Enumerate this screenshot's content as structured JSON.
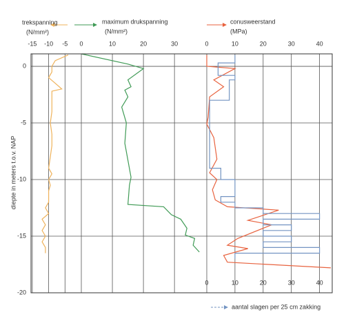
{
  "chart_data": [
    {
      "type": "line",
      "title": "trekspanning",
      "unit": "(N/mm²)",
      "ylabel": "diepte in meters t.o.v. NAP",
      "xlim": [
        -15.4,
        0
      ],
      "xticks": [
        -15,
        -10,
        -5,
        0
      ],
      "ylim": [
        -20,
        1.1
      ],
      "yticks": [
        0,
        -5,
        -10,
        -15,
        -20
      ],
      "grid": true,
      "series": [
        {
          "color": "#efb25a",
          "values": [
            -4,
            -8,
            -9,
            -9,
            -10,
            -8,
            -6,
            -9,
            -9,
            -9,
            -9,
            -9.5,
            -9,
            -9,
            -9.5,
            -10,
            -9,
            -10,
            -9.5,
            -10,
            -10,
            -11,
            -10,
            -12,
            -11,
            -12,
            -11,
            -12,
            -11,
            -11
          ],
          "depth": [
            1,
            0.5,
            0,
            -0.5,
            -1,
            -1.5,
            -2,
            -2.2,
            -2.5,
            -3,
            -4,
            -5,
            -6,
            -7,
            -8,
            -9,
            -9.5,
            -10,
            -10.5,
            -11,
            -12,
            -12.5,
            -13,
            -13.5,
            -14,
            -14.5,
            -15,
            -15.5,
            -16,
            -16.5
          ]
        }
      ]
    },
    {
      "type": "line",
      "title": "maximum drukspanning",
      "unit": "(N/mm²)",
      "xlim": [
        0,
        40.4
      ],
      "xticks": [
        10,
        20,
        30
      ],
      "grid": true,
      "series": [
        {
          "color": "#3f9a55",
          "values": [
            0,
            15,
            20,
            15,
            16,
            14,
            15,
            13,
            14.5,
            14,
            16,
            15.5,
            15,
            26.5,
            29,
            32,
            34,
            33.5,
            36.5,
            36,
            38
          ],
          "depth": [
            1.1,
            0.2,
            -0.2,
            -1.2,
            -1.8,
            -2.1,
            -2.7,
            -3.6,
            -5,
            -6.8,
            -9.8,
            -10.5,
            -12.2,
            -12.4,
            -13.1,
            -13.5,
            -14.3,
            -14.9,
            -15.2,
            -15.8,
            -16.4
          ]
        }
      ]
    },
    {
      "type": "line",
      "title": "conusweerstand",
      "unit": "(MPa)",
      "xlim": [
        0,
        44.5
      ],
      "xticks": [
        0,
        10,
        20,
        30,
        40
      ],
      "grid": true,
      "x2label": "aantal slagen per 25 cm zakking",
      "x2ticks": [
        0,
        10,
        20,
        30,
        40
      ],
      "series": [
        {
          "color": "#e8623e",
          "values": [
            0,
            0,
            10,
            2.5,
            6,
            1,
            0.5,
            0,
            2.5,
            3.6,
            1,
            3.6,
            2,
            3,
            7.3,
            25.5,
            14.6,
            23,
            11,
            7.3,
            14.6,
            6,
            7.3,
            44
          ],
          "depth": [
            1,
            0,
            -0.2,
            -1.2,
            -1.8,
            -2.7,
            -4.5,
            -5.1,
            -6.3,
            -8.2,
            -9.4,
            -10,
            -10.9,
            -11.8,
            -12.4,
            -12.7,
            -13.6,
            -14,
            -15.2,
            -15.8,
            -16.1,
            -16.7,
            -17.3,
            -17.8
          ]
        },
        {
          "color": "#7394c2",
          "axis": "x2",
          "values": [
            10,
            10,
            4,
            4,
            10,
            10,
            8,
            8,
            1,
            1,
            5,
            5,
            10,
            10,
            5,
            5,
            10,
            10,
            20,
            20,
            40,
            40,
            20,
            20,
            30,
            30,
            20,
            20,
            30,
            30,
            20,
            20,
            40,
            40,
            10,
            10
          ],
          "depth": [
            1,
            0.3,
            0.3,
            -0.8,
            -0.8,
            -1.2,
            -1.2,
            -3,
            -3,
            -9,
            -9,
            -10,
            -10,
            -11.5,
            -11.5,
            -12,
            -12,
            -12.5,
            -12.5,
            -13,
            -13,
            -13.5,
            -13.5,
            -14,
            -14,
            -14.5,
            -14.5,
            -15,
            -15,
            -15.5,
            -15.5,
            -16,
            -16,
            -16.5,
            -16.5,
            -17
          ]
        }
      ]
    }
  ]
}
